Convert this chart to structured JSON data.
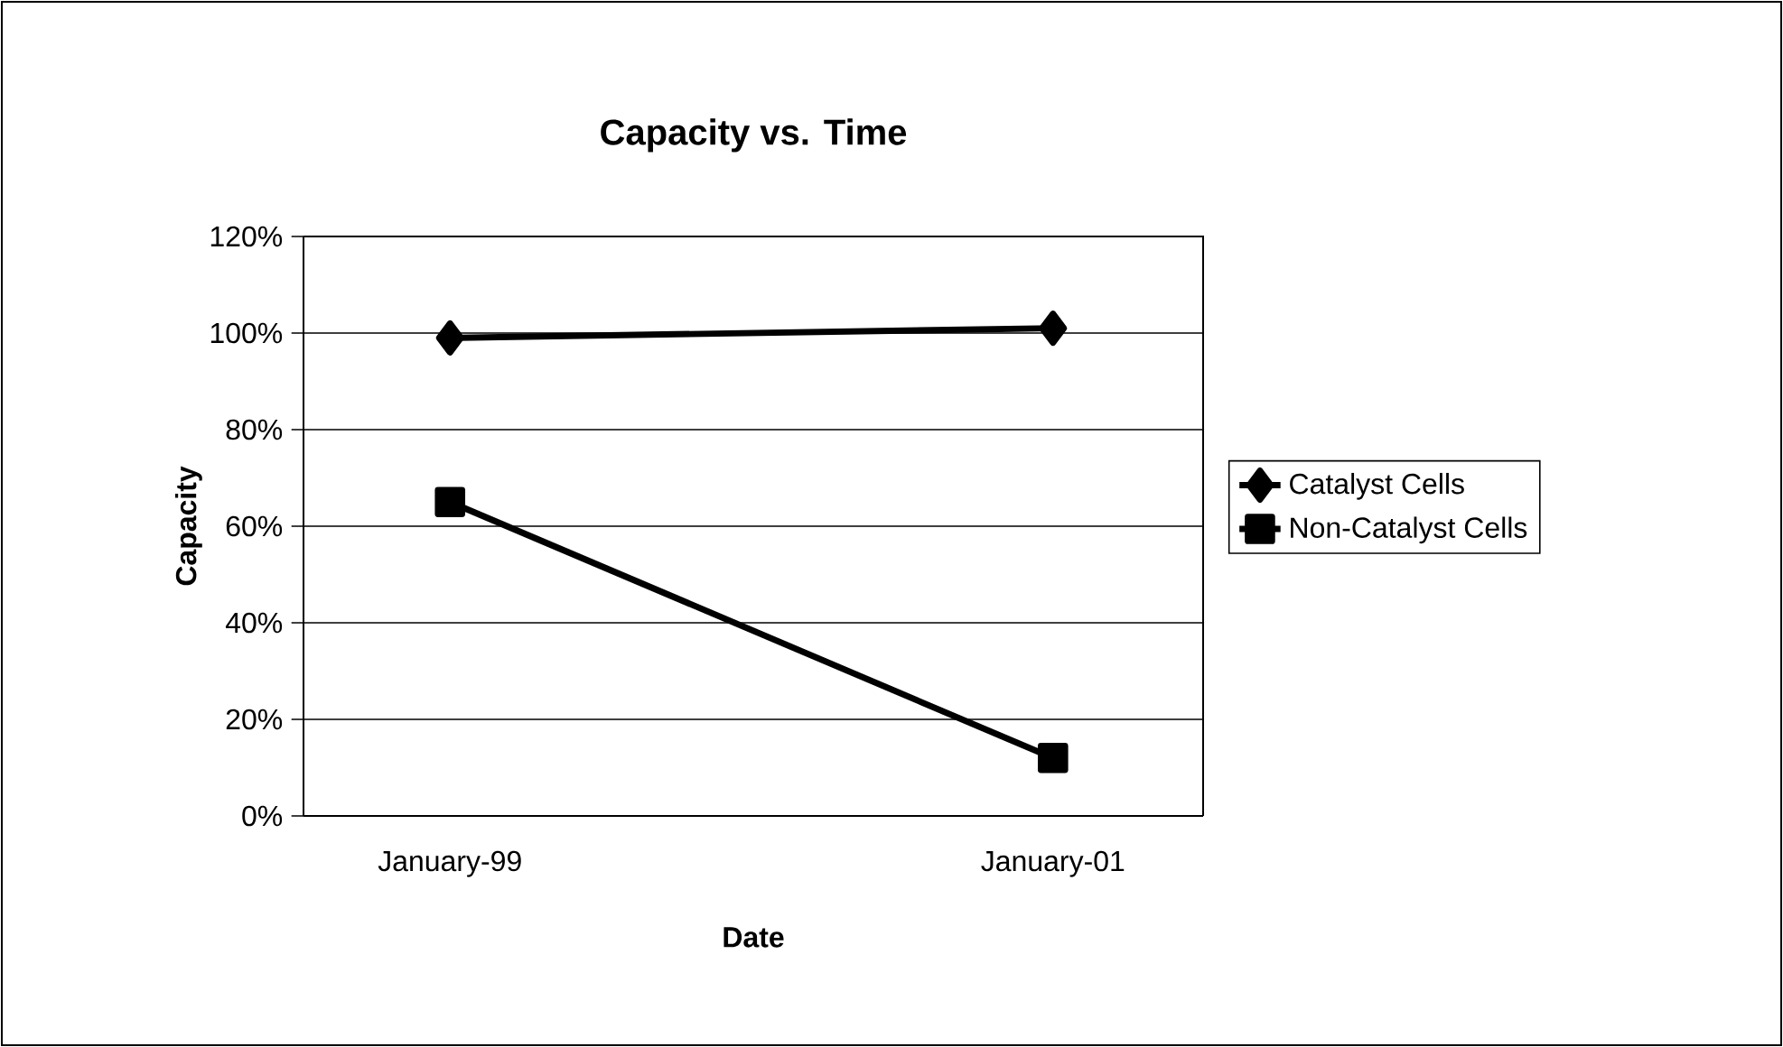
{
  "chart_data": {
    "type": "line",
    "title": "Capacity vs. Time",
    "xlabel": "Date",
    "ylabel": "Capacity",
    "categories": [
      "January-99",
      "January-01"
    ],
    "series": [
      {
        "name": "Catalyst Cells",
        "color": "#000000",
        "marker": "diamond",
        "values": [
          99,
          101
        ]
      },
      {
        "name": "Non-Catalyst Cells",
        "color": "#000000",
        "marker": "square",
        "values": [
          65,
          12
        ]
      }
    ],
    "ylim": [
      0,
      120
    ],
    "yticks": [
      {
        "value": 0,
        "label": "0%"
      },
      {
        "value": 20,
        "label": "20%"
      },
      {
        "value": 40,
        "label": "40%"
      },
      {
        "value": 60,
        "label": "60%"
      },
      {
        "value": 80,
        "label": "80%"
      },
      {
        "value": 100,
        "label": "100%"
      },
      {
        "value": 120,
        "label": "120%"
      }
    ],
    "grid": "y",
    "legend": "right",
    "line_style": "solid"
  }
}
